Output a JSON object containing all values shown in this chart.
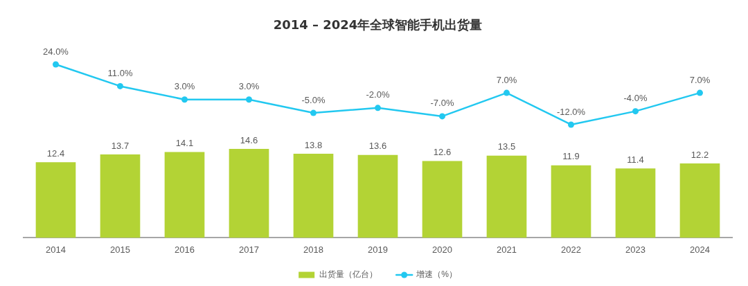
{
  "chart_data": [
    {
      "type": "line",
      "title": "2014 – 2024年全球智能手机出货量",
      "categories": [
        "2014",
        "2015",
        "2016",
        "2017",
        "2018",
        "2019",
        "2020",
        "2021",
        "2022",
        "2023",
        "2024"
      ],
      "series": [
        {
          "name": "增速（%）",
          "color": "#22c8f0",
          "values": [
            24,
            11,
            3,
            3,
            -5,
            -2,
            -7,
            7,
            -12,
            -4,
            7
          ],
          "value_labels": [
            "24.0%",
            "11.0%",
            "3.0%",
            "3.0%",
            "-5.0%",
            "-2.0%",
            "-7.0%",
            "7.0%",
            "-12.0%",
            "-4.0%",
            "7.0%"
          ]
        }
      ],
      "marker": "circle",
      "legend": "bottom",
      "tick_labels": false
    },
    {
      "type": "bar",
      "categories": [
        "2014",
        "2015",
        "2016",
        "2017",
        "2018",
        "2019",
        "2020",
        "2021",
        "2022",
        "2023",
        "2024"
      ],
      "series": [
        {
          "name": "出货量（亿台）",
          "color": "#b3d335",
          "values": [
            12.4,
            13.7,
            14.1,
            14.6,
            13.8,
            13.6,
            12.6,
            13.5,
            11.9,
            11.4,
            12.2
          ],
          "value_labels": [
            "12.4",
            "13.7",
            "14.1",
            "14.6",
            "13.8",
            "13.6",
            "12.6",
            "13.5",
            "11.9",
            "11.4",
            "12.2"
          ]
        }
      ],
      "legend": "bottom",
      "tick_labels": "x"
    }
  ]
}
